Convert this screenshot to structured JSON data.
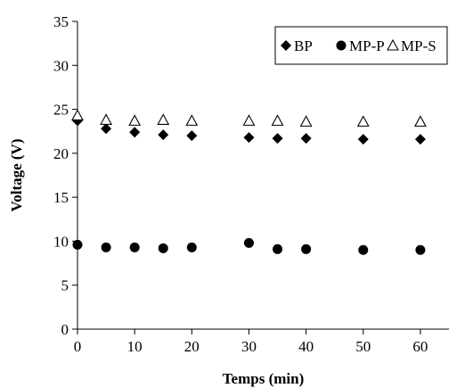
{
  "chart_data": {
    "type": "scatter",
    "title": "",
    "xlabel": "Temps (min)",
    "ylabel": "Voltage  (V)",
    "xlim": [
      0,
      65
    ],
    "ylim": [
      0,
      35
    ],
    "xticks": [
      0,
      10,
      20,
      30,
      40,
      50,
      60
    ],
    "yticks": [
      0,
      5,
      10,
      15,
      20,
      25,
      30,
      35
    ],
    "grid": false,
    "legend_position": "top-right",
    "series": [
      {
        "name": "BP",
        "marker": "diamond-filled",
        "color": "#000000",
        "x": [
          0,
          5,
          10,
          15,
          20,
          30,
          35,
          40,
          50,
          60
        ],
        "y": [
          23.7,
          22.8,
          22.4,
          22.1,
          22.0,
          21.8,
          21.7,
          21.7,
          21.6,
          21.6
        ]
      },
      {
        "name": "MP-P",
        "marker": "circle-filled",
        "color": "#000000",
        "x": [
          0,
          5,
          10,
          15,
          20,
          30,
          35,
          40,
          50,
          60
        ],
        "y": [
          9.6,
          9.3,
          9.3,
          9.2,
          9.3,
          9.8,
          9.1,
          9.1,
          9.0,
          9.0
        ]
      },
      {
        "name": "MP-S",
        "marker": "triangle-open",
        "color": "#000000",
        "x": [
          0,
          5,
          10,
          15,
          20,
          30,
          35,
          40,
          50,
          60
        ],
        "y": [
          24.3,
          23.8,
          23.7,
          23.8,
          23.7,
          23.7,
          23.7,
          23.6,
          23.6,
          23.6
        ]
      }
    ]
  }
}
